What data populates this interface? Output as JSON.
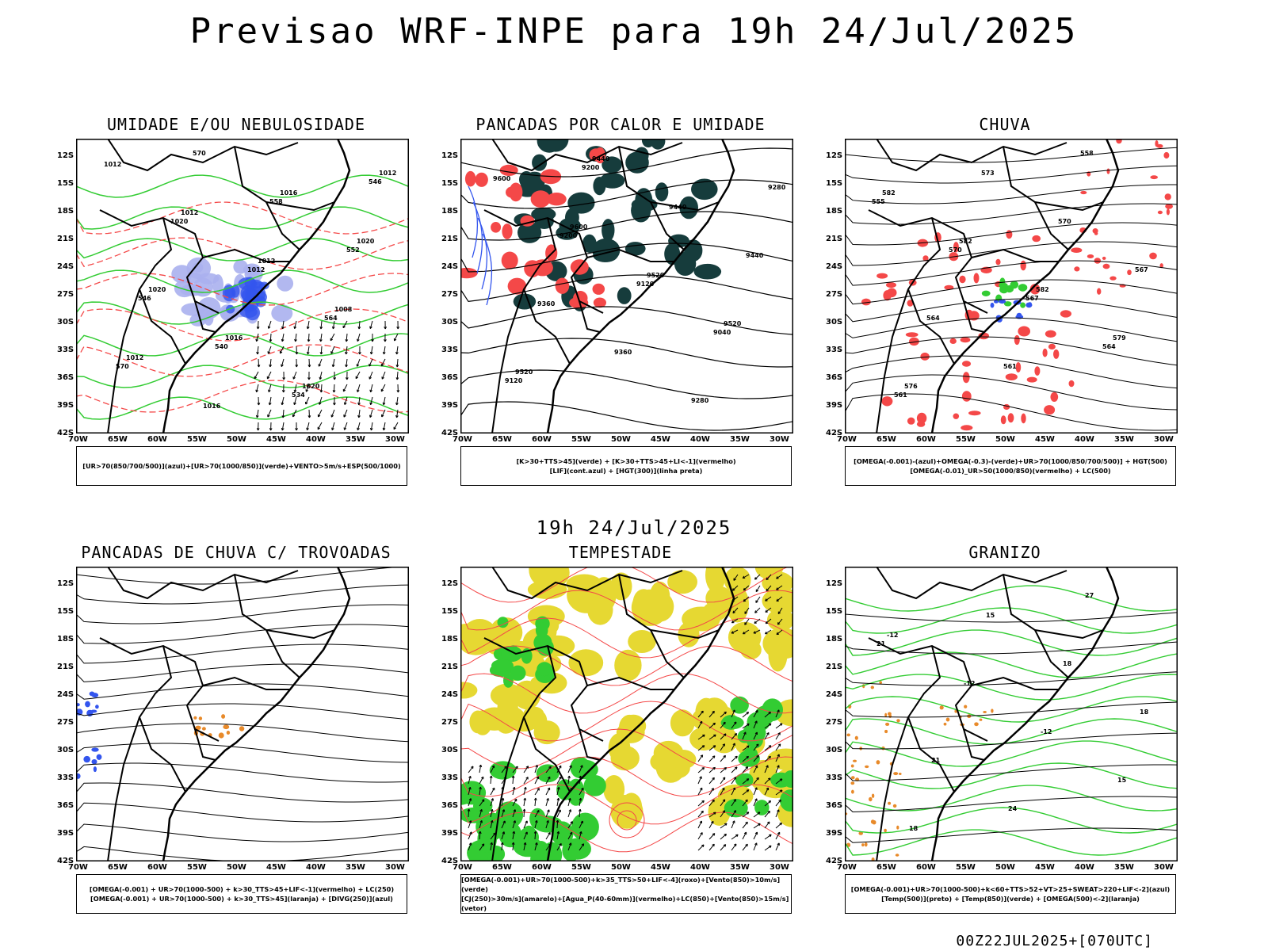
{
  "title": "Previsao WRF-INPE  para 19h 24/Jul/2025",
  "subtitle": "19h 24/Jul/2025",
  "footer": "00Z22JUL2025+[070UTC]",
  "lat_labels": [
    "12S",
    "15S",
    "18S",
    "21S",
    "24S",
    "27S",
    "30S",
    "33S",
    "36S",
    "39S",
    "42S"
  ],
  "lon_labels": [
    "70W",
    "65W",
    "60W",
    "55W",
    "50W",
    "45W",
    "40W",
    "35W",
    "30W"
  ],
  "colors": {
    "green": "#33cc33",
    "red": "#f44848",
    "blue": "#3355ee",
    "lavender": "#aab0ee",
    "darkteal": "#163c3c",
    "yellow": "#e6d832",
    "orange": "#e88a2a"
  },
  "panels": [
    {
      "id": "umidade",
      "title": "UMIDADE E/OU NEBULOSIDADE",
      "legend": [
        "[UR>70(850/700/500)](azul)+[UR>70(1000/850)](verde)+VENTO>5m/s+ESP(500/1000)"
      ],
      "contour_labels": [
        "1012",
        "1012",
        "1012",
        "1008",
        "1012",
        "1016",
        "1016",
        "1020",
        "1020",
        "1016",
        "1020",
        "1012",
        "1020",
        "1012",
        "564",
        "570",
        "570",
        "558",
        "552",
        "546",
        "540",
        "534",
        "546"
      ]
    },
    {
      "id": "pancadas_calor",
      "title": "PANCADAS POR CALOR E UMIDADE",
      "legend": [
        "[K>30+TTS>45](verde) + [K>30+TTS>45+LI<-1](vermelho)",
        "[LIF](cont.azul) + [HGT(300)](linha preta)"
      ],
      "contour_labels": [
        "9600",
        "9600",
        "9520",
        "9520",
        "9520",
        "9440",
        "9440",
        "9440",
        "9360",
        "9360",
        "9280",
        "9280",
        "9200",
        "9120",
        "9040",
        "9120",
        "9200"
      ]
    },
    {
      "id": "chuva",
      "title": "CHUVA",
      "legend": [
        "[OMEGA(-0.001)-(azul)+OMEGA(-0.3)-(verde)+UR>70(1000/850/700/500)] + HGT(500)",
        "[OMEGA(-0.01)_UR>50(1000/850)(vermelho) + LC(500)"
      ],
      "contour_labels": [
        "582",
        "582",
        "582",
        "579",
        "576",
        "573",
        "570",
        "567",
        "564",
        "561",
        "558",
        "555",
        "570",
        "567",
        "564",
        "561"
      ]
    },
    {
      "id": "trovoadas",
      "title": "PANCADAS DE CHUVA C/ TROVOADAS",
      "legend": [
        "[OMEGA(-0.001) + UR>70(1000-500) + k>30_TTS>45+LIF<-1](vermelho) + LC(250)",
        "[OMEGA(-0.001) + UR>70(1000-500) + k>30_TTS>45](laranja) + [DIVG(250)](azul)"
      ],
      "contour_labels": []
    },
    {
      "id": "tempestade",
      "title": "TEMPESTADE",
      "legend": [
        "[OMEGA(-0.001)+UR>70(1000-500)+k>35_TTS>50+LIF<-4](roxo)+[Vento(850)>10m/s](verde)",
        "[CJ(250)>30m/s](amarelo)+[Agua_P(40-60mm)](vermelho)+LC(850)+[Vento(850)>15m/s](vetor)"
      ],
      "contour_labels": []
    },
    {
      "id": "granizo",
      "title": "GRANIZO",
      "legend": [
        "[OMEGA(-0.001)+UR>70(1000-500)+k<60+TTS>52+VT>25+SWEAT>220+LIF<-2](azul)",
        "[Temp(500)](preto) + [Temp(850)](verde) + [OMEGA(500)<-2](laranja)"
      ],
      "contour_labels": [
        "-12",
        "-12",
        "-12",
        "15",
        "18",
        "15",
        "18",
        "18",
        "21",
        "24",
        "27",
        "21"
      ]
    }
  ]
}
